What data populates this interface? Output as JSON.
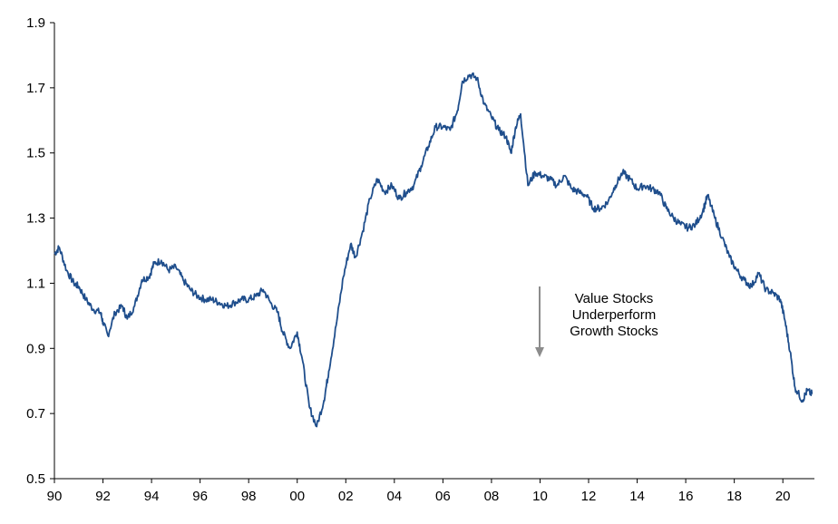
{
  "chart_data": {
    "type": "line",
    "title": "",
    "xlabel": "",
    "ylabel": "",
    "x_tick_labels": [
      "90",
      "92",
      "94",
      "96",
      "98",
      "00",
      "02",
      "04",
      "06",
      "08",
      "10",
      "12",
      "14",
      "16",
      "18",
      "20"
    ],
    "x_tick_years": [
      1990,
      1992,
      1994,
      1996,
      1998,
      2000,
      2002,
      2004,
      2006,
      2008,
      2010,
      2012,
      2014,
      2016,
      2018,
      2020
    ],
    "y_tick_labels": [
      "0.5",
      "0.7",
      "0.9",
      "1.1",
      "1.3",
      "1.5",
      "1.7",
      "1.9"
    ],
    "y_ticks": [
      0.5,
      0.7,
      0.9,
      1.1,
      1.3,
      1.5,
      1.7,
      1.9
    ],
    "xlim": [
      1990,
      2021.3
    ],
    "ylim": [
      0.5,
      1.9
    ],
    "grid": false,
    "legend": "none",
    "series": [
      {
        "color": "#1f4e8c",
        "x": [
          1990.0,
          1990.2,
          1990.5,
          1990.8,
          1991.0,
          1991.3,
          1991.6,
          1991.9,
          1992.0,
          1992.2,
          1992.5,
          1992.8,
          1993.0,
          1993.3,
          1993.6,
          1993.9,
          1994.1,
          1994.4,
          1994.7,
          1995.0,
          1995.3,
          1995.6,
          1995.9,
          1996.2,
          1996.5,
          1996.8,
          1997.1,
          1997.4,
          1997.7,
          1998.0,
          1998.3,
          1998.6,
          1998.9,
          1999.2,
          1999.4,
          1999.7,
          2000.0,
          2000.2,
          2000.5,
          2000.8,
          2001.1,
          2001.3,
          2001.6,
          2001.9,
          2002.2,
          2002.4,
          2002.7,
          2003.0,
          2003.3,
          2003.6,
          2003.9,
          2004.2,
          2004.5,
          2004.8,
          2005.1,
          2005.4,
          2005.7,
          2006.0,
          2006.3,
          2006.6,
          2006.8,
          2007.1,
          2007.4,
          2007.7,
          2008.0,
          2008.3,
          2008.6,
          2008.8,
          2009.0,
          2009.2,
          2009.5,
          2009.8,
          2010.1,
          2010.4,
          2010.7,
          2011.0,
          2011.3,
          2011.6,
          2011.9,
          2012.2,
          2012.5,
          2012.8,
          2013.1,
          2013.4,
          2013.7,
          2014.0,
          2014.3,
          2014.6,
          2014.9,
          2015.2,
          2015.5,
          2015.8,
          2016.1,
          2016.4,
          2016.7,
          2016.9,
          2017.2,
          2017.5,
          2017.8,
          2018.1,
          2018.4,
          2018.7,
          2019.0,
          2019.3,
          2019.6,
          2019.9,
          2020.1,
          2020.3,
          2020.5,
          2020.8,
          2021.0,
          2021.2
        ],
        "y": [
          1.19,
          1.21,
          1.14,
          1.1,
          1.09,
          1.05,
          1.02,
          1.01,
          0.98,
          0.94,
          1.01,
          1.03,
          0.99,
          1.03,
          1.11,
          1.12,
          1.16,
          1.17,
          1.14,
          1.15,
          1.11,
          1.08,
          1.06,
          1.05,
          1.05,
          1.04,
          1.03,
          1.04,
          1.05,
          1.05,
          1.06,
          1.08,
          1.04,
          1.01,
          0.95,
          0.9,
          0.95,
          0.87,
          0.72,
          0.66,
          0.74,
          0.83,
          0.97,
          1.12,
          1.22,
          1.18,
          1.26,
          1.36,
          1.42,
          1.38,
          1.4,
          1.36,
          1.38,
          1.4,
          1.46,
          1.52,
          1.58,
          1.58,
          1.57,
          1.63,
          1.72,
          1.74,
          1.73,
          1.65,
          1.61,
          1.57,
          1.55,
          1.5,
          1.58,
          1.62,
          1.4,
          1.44,
          1.43,
          1.42,
          1.4,
          1.43,
          1.39,
          1.38,
          1.37,
          1.33,
          1.33,
          1.35,
          1.4,
          1.44,
          1.42,
          1.39,
          1.4,
          1.39,
          1.38,
          1.33,
          1.3,
          1.28,
          1.27,
          1.28,
          1.32,
          1.37,
          1.3,
          1.24,
          1.18,
          1.14,
          1.11,
          1.09,
          1.13,
          1.08,
          1.07,
          1.05,
          0.98,
          0.89,
          0.78,
          0.74,
          0.77,
          0.76
        ]
      }
    ],
    "annotation": {
      "lines": [
        "Value Stocks",
        "Underperform",
        "Growth Stocks"
      ],
      "arrow": "down",
      "arrow_color": "#8c8c8c"
    }
  }
}
